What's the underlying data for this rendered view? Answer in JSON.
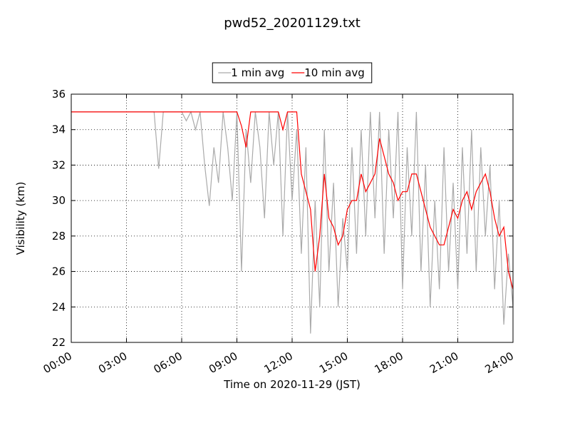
{
  "chart_data": {
    "type": "line",
    "title": "pwd52_20201129.txt",
    "x_label": "Time on 2020-11-29 (JST)",
    "y_label": "Visibility (km)",
    "x": [
      0,
      0.25,
      0.5,
      0.75,
      1,
      1.25,
      1.5,
      1.75,
      2,
      2.25,
      2.5,
      2.75,
      3,
      3.25,
      3.5,
      3.75,
      4,
      4.25,
      4.5,
      4.75,
      5,
      5.25,
      5.5,
      5.75,
      6,
      6.25,
      6.5,
      6.75,
      7,
      7.25,
      7.5,
      7.75,
      8,
      8.25,
      8.5,
      8.75,
      9,
      9.25,
      9.5,
      9.75,
      10,
      10.25,
      10.5,
      10.75,
      11,
      11.25,
      11.5,
      11.75,
      12,
      12.25,
      12.5,
      12.75,
      13,
      13.25,
      13.5,
      13.75,
      14,
      14.25,
      14.5,
      14.75,
      15,
      15.25,
      15.5,
      15.75,
      16,
      16.25,
      16.5,
      16.75,
      17,
      17.25,
      17.5,
      17.75,
      18,
      18.25,
      18.5,
      18.75,
      19,
      19.25,
      19.5,
      19.75,
      20,
      20.25,
      20.5,
      20.75,
      21,
      21.25,
      21.5,
      21.75,
      22,
      22.25,
      22.5,
      22.75,
      23,
      23.25,
      23.5,
      23.75,
      24
    ],
    "series": [
      {
        "name": "1 min avg",
        "color": "#aaaaaa",
        "values": [
          35,
          35,
          35,
          35,
          35,
          35,
          35,
          35,
          35,
          35,
          35,
          35,
          35,
          35,
          35,
          35,
          35,
          35,
          35,
          31.8,
          35,
          35,
          35,
          35,
          35,
          34.5,
          35,
          34,
          35,
          32,
          29.7,
          33,
          31,
          35,
          33,
          30,
          35,
          26,
          34,
          31,
          35,
          33,
          29,
          35,
          32,
          35,
          28,
          35,
          30,
          34,
          27,
          33,
          22.5,
          30,
          24,
          34,
          26,
          31,
          24,
          29,
          26,
          33,
          27,
          34,
          28,
          35,
          29,
          35,
          27,
          34,
          29,
          35,
          25,
          33,
          28,
          35,
          26,
          32,
          24,
          30,
          25,
          33,
          26,
          31,
          25,
          33,
          27,
          34,
          26,
          33,
          28,
          32,
          25,
          30,
          23,
          27,
          24
        ]
      },
      {
        "name": "10 min avg",
        "color": "#ff0000",
        "values": [
          35,
          35,
          35,
          35,
          35,
          35,
          35,
          35,
          35,
          35,
          35,
          35,
          35,
          35,
          35,
          35,
          35,
          35,
          35,
          35,
          35,
          35,
          35,
          35,
          35,
          35,
          35,
          35,
          35,
          35,
          35,
          35,
          35,
          35,
          35,
          35,
          35,
          34.2,
          33,
          35,
          35,
          35,
          35,
          35,
          35,
          35,
          34,
          35,
          35,
          35,
          31.5,
          30.5,
          29.5,
          26,
          28,
          31.5,
          29,
          28.5,
          27.5,
          28,
          29.5,
          30,
          30,
          31.5,
          30.5,
          31,
          31.5,
          33.5,
          32.5,
          31.5,
          31,
          30,
          30.5,
          30.5,
          31.5,
          31.5,
          30.5,
          29.5,
          28.5,
          28,
          27.5,
          27.5,
          28.5,
          29.5,
          29,
          30,
          30.5,
          29.5,
          30.5,
          31,
          31.5,
          30.5,
          29,
          28,
          28.5,
          26,
          25
        ]
      }
    ],
    "xlim": [
      0,
      24
    ],
    "xticks": [
      {
        "value": 0,
        "label": "00:00"
      },
      {
        "value": 3,
        "label": "03:00"
      },
      {
        "value": 6,
        "label": "06:00"
      },
      {
        "value": 9,
        "label": "09:00"
      },
      {
        "value": 12,
        "label": "12:00"
      },
      {
        "value": 15,
        "label": "15:00"
      },
      {
        "value": 18,
        "label": "18:00"
      },
      {
        "value": 21,
        "label": "21:00"
      },
      {
        "value": 24,
        "label": "24:00"
      }
    ],
    "ylim": [
      22,
      36
    ],
    "yticks": [
      22,
      24,
      26,
      28,
      30,
      32,
      34,
      36
    ],
    "grid": true,
    "legend": "top"
  }
}
